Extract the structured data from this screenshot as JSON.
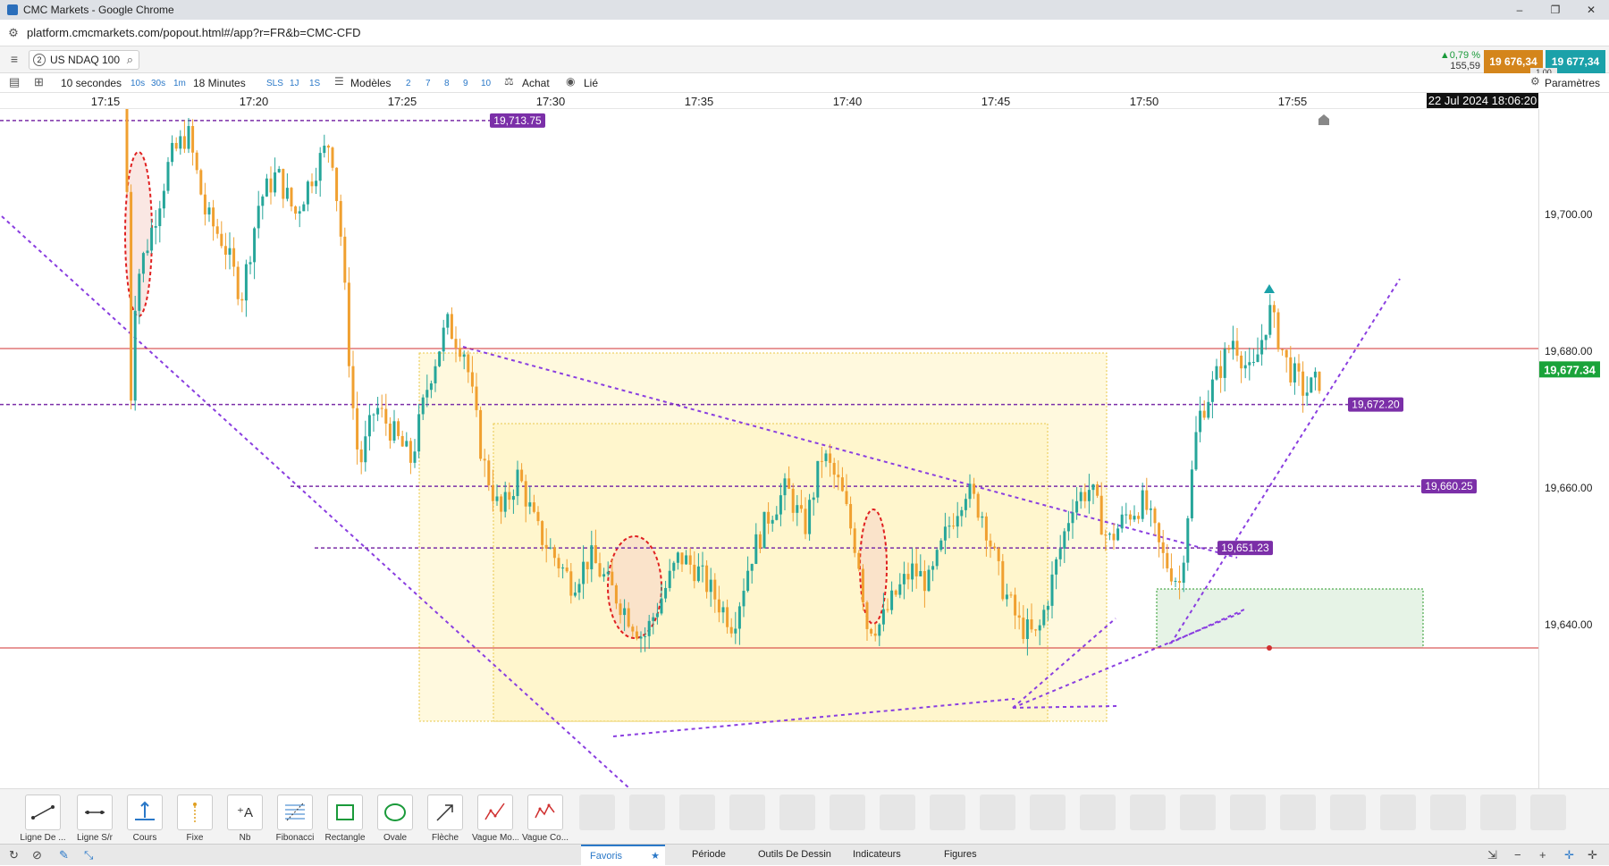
{
  "window": {
    "title": "CMC Markets - Google Chrome",
    "minimize_glyph": "–",
    "maximize_glyph": "❐",
    "close_glyph": "✕"
  },
  "browser": {
    "url": "platform.cmcmarkets.com/popout.html#/app?r=FR&b=CMC-CFD"
  },
  "instrument": {
    "number": "2",
    "name": "US NDAQ 100"
  },
  "quote": {
    "change_pct": "▲0,79 %",
    "change_pts": "155,59",
    "sell": "19 676,34",
    "buy": "19 677,34",
    "spread": "1,00",
    "colors": {
      "sell": "#d4851b",
      "buy": "#1ba1a9",
      "up": "#1a9a3a"
    }
  },
  "toolbar": {
    "interval": "10 secondes",
    "quick_intervals": [
      "10s",
      "30s",
      "1m"
    ],
    "range": "18 Minutes",
    "sls": "SLS",
    "quick_ranges": [
      "1J",
      "1S"
    ],
    "templates": "Modèles",
    "numbers": [
      "2",
      "7",
      "8",
      "9",
      "10"
    ],
    "buy_mode": "Achat",
    "linked": "Lié",
    "settings": "Paramètres"
  },
  "time_axis": {
    "labels": [
      "17:15",
      "17:20",
      "17:25",
      "17:30",
      "17:35",
      "17:40",
      "17:45",
      "17:50",
      "17:55"
    ],
    "current_datetime": "22 Jul 2024 18:06:20"
  },
  "chart_data": {
    "type": "candlestick",
    "instrument": "US NDAQ 100",
    "interval": "10 secondes",
    "x_range": [
      "17:14",
      "18:06"
    ],
    "y_range": [
      19620,
      19719
    ],
    "price_axis_labels": [
      "19,700.00",
      "19,680.00",
      "19,660.00",
      "19,640.00"
    ],
    "current_price": "19,677.34",
    "horizontal_levels": [
      {
        "label": "19,713.75",
        "style": "dashed",
        "color": "#7b2fa8"
      },
      {
        "label": "19,672.20",
        "style": "dashed",
        "color": "#7b2fa8"
      },
      {
        "label": "19,660.25",
        "style": "dashed",
        "color": "#7b2fa8"
      },
      {
        "label": "19,651.23",
        "style": "dashed",
        "color": "#7b2fa8"
      }
    ],
    "grid": false,
    "colors": {
      "up": "#26a69a",
      "down": "#f0a030",
      "level": "#7b2fa8",
      "current": "#1aa33a"
    }
  },
  "drawing_tools": [
    {
      "name": "line-tool",
      "label": "Ligne De ..."
    },
    {
      "name": "sr-line-tool",
      "label": "Ligne S/r"
    },
    {
      "name": "price-tool",
      "label": "Cours"
    },
    {
      "name": "fixed-tool",
      "label": "Fixe"
    },
    {
      "name": "text-tool",
      "label": "Nb"
    },
    {
      "name": "fibonacci-tool",
      "label": "Fibonacci"
    },
    {
      "name": "rectangle-tool",
      "label": "Rectangle"
    },
    {
      "name": "oval-tool",
      "label": "Ovale"
    },
    {
      "name": "arrow-tool",
      "label": "Flèche"
    },
    {
      "name": "wave-mo-tool",
      "label": "Vague Mo..."
    },
    {
      "name": "wave-co-tool",
      "label": "Vague Co..."
    }
  ],
  "bottom_tabs": [
    "Favoris",
    "Période",
    "Outils De Dessin",
    "Indicateurs",
    "Figures"
  ]
}
